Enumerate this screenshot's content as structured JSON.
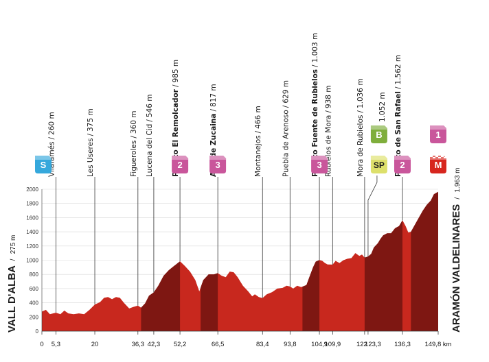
{
  "start": {
    "name": "VALL D'ALBA",
    "alt": "275 m"
  },
  "finish": {
    "name": "ARAMÓN VALDELINARES",
    "alt": "1.963 m"
  },
  "chart_data": {
    "type": "area",
    "title": "",
    "xlabel": "",
    "ylabel": "",
    "x_unit": "km",
    "xlim": [
      0,
      149.8
    ],
    "ylim": [
      0,
      2000
    ],
    "y_ticks": [
      0,
      200,
      400,
      600,
      800,
      1000,
      1200,
      1400,
      1600,
      1800,
      2000
    ],
    "x_ticks": [
      "0",
      "5,3",
      "20",
      "36,3",
      "42,3",
      "52,2",
      "66,5",
      "83,4",
      "93,8",
      "104,9",
      "109,9",
      "122",
      "123,3",
      "136,3",
      "149,8 km"
    ],
    "x_tick_values": [
      0,
      5.3,
      20,
      36.3,
      42.3,
      52.2,
      66.5,
      83.4,
      93.8,
      104.9,
      109.9,
      122,
      123.3,
      136.3,
      149.8
    ],
    "profile": [
      [
        0,
        275
      ],
      [
        1.5,
        300
      ],
      [
        3,
        240
      ],
      [
        5.3,
        260
      ],
      [
        7,
        240
      ],
      [
        8.5,
        290
      ],
      [
        10,
        250
      ],
      [
        12,
        240
      ],
      [
        14,
        250
      ],
      [
        16,
        240
      ],
      [
        18,
        300
      ],
      [
        20,
        375
      ],
      [
        22,
        410
      ],
      [
        23.5,
        470
      ],
      [
        25,
        480
      ],
      [
        26.5,
        450
      ],
      [
        28,
        480
      ],
      [
        29.5,
        470
      ],
      [
        31,
        400
      ],
      [
        33,
        320
      ],
      [
        34.5,
        340
      ],
      [
        36.3,
        360
      ],
      [
        37.5,
        330
      ],
      [
        39,
        390
      ],
      [
        40.5,
        500
      ],
      [
        42.3,
        546
      ],
      [
        44,
        640
      ],
      [
        46,
        780
      ],
      [
        48,
        860
      ],
      [
        50,
        920
      ],
      [
        52.2,
        985
      ],
      [
        54,
        920
      ],
      [
        56,
        840
      ],
      [
        58,
        720
      ],
      [
        59.5,
        560
      ],
      [
        61,
        720
      ],
      [
        63,
        800
      ],
      [
        65,
        800
      ],
      [
        66.5,
        817
      ],
      [
        68,
        780
      ],
      [
        69.5,
        760
      ],
      [
        71,
        840
      ],
      [
        72.5,
        830
      ],
      [
        74,
        760
      ],
      [
        76,
        640
      ],
      [
        78,
        560
      ],
      [
        79.5,
        490
      ],
      [
        80.5,
        520
      ],
      [
        82,
        480
      ],
      [
        83.4,
        466
      ],
      [
        85,
        520
      ],
      [
        87,
        550
      ],
      [
        89,
        600
      ],
      [
        91,
        610
      ],
      [
        92.5,
        640
      ],
      [
        93.8,
        629
      ],
      [
        95,
        600
      ],
      [
        96.5,
        640
      ],
      [
        98,
        620
      ],
      [
        100,
        650
      ],
      [
        101,
        750
      ],
      [
        102.5,
        900
      ],
      [
        103.5,
        980
      ],
      [
        104.9,
        1003
      ],
      [
        106,
        990
      ],
      [
        107,
        960
      ],
      [
        108,
        940
      ],
      [
        109.9,
        938
      ],
      [
        111,
        990
      ],
      [
        112.5,
        960
      ],
      [
        114,
        1000
      ],
      [
        115.5,
        1020
      ],
      [
        117,
        1030
      ],
      [
        118.5,
        1100
      ],
      [
        120,
        1060
      ],
      [
        121,
        1080
      ],
      [
        122,
        1036
      ],
      [
        123.3,
        1052
      ],
      [
        124.5,
        1090
      ],
      [
        125.5,
        1180
      ],
      [
        127,
        1240
      ],
      [
        128,
        1300
      ],
      [
        129,
        1350
      ],
      [
        130.5,
        1380
      ],
      [
        132,
        1380
      ],
      [
        133.5,
        1450
      ],
      [
        135,
        1480
      ],
      [
        136.3,
        1562
      ],
      [
        137.5,
        1480
      ],
      [
        138.5,
        1390
      ],
      [
        139.5,
        1400
      ],
      [
        141,
        1500
      ],
      [
        142.5,
        1600
      ],
      [
        144,
        1700
      ],
      [
        145.5,
        1780
      ],
      [
        147,
        1840
      ],
      [
        148.2,
        1930
      ],
      [
        149.8,
        1963
      ]
    ],
    "climb_segments": [
      {
        "from": 37.5,
        "to": 52.2
      },
      {
        "from": 60,
        "to": 66.5
      },
      {
        "from": 98.5,
        "to": 104.9
      },
      {
        "from": 122,
        "to": 136.3
      },
      {
        "from": 139.5,
        "to": 149.8
      }
    ],
    "colors": {
      "profile_fill": "#c8281e",
      "climb_fill": "#7e1712",
      "badge_magenta": "#c9569b",
      "badge_cyan": "#35a8dc",
      "badge_green": "#7fae3c",
      "badge_yellow": "#dde06b",
      "badge_red": "#d7261e"
    }
  },
  "waypoints": [
    {
      "km": 5.3,
      "name": "Vilafamés",
      "alt": "260 m",
      "bold": false
    },
    {
      "km": 20,
      "name": "Les Useres",
      "alt": "375 m",
      "bold": false
    },
    {
      "km": 36.3,
      "name": "Figueroles",
      "alt": "360 m",
      "bold": false
    },
    {
      "km": 42.3,
      "name": "Lucena del Cid",
      "alt": "546 m",
      "bold": false
    },
    {
      "km": 52.2,
      "name": "Puerto El Remolcador",
      "alt": "985 m",
      "bold": true
    },
    {
      "km": 66.5,
      "name": "Alto de Zucaina",
      "alt": "817 m",
      "bold": true
    },
    {
      "km": 83.4,
      "name": "Montanejos",
      "alt": "466 m",
      "bold": false
    },
    {
      "km": 93.8,
      "name": "Puebla de Arenoso",
      "alt": "629 m",
      "bold": false
    },
    {
      "km": 104.9,
      "name": "Puerto Fuente de Rubielos",
      "alt": "1.003 m",
      "bold": true
    },
    {
      "km": 109.9,
      "name": "Rubielos de Mora",
      "alt": "938 m",
      "bold": false
    },
    {
      "km": 122,
      "name": "Mora de Rubielos",
      "alt": "1.036 m",
      "bold": false
    },
    {
      "km": 123.3,
      "name": "",
      "alt": "1.052 m",
      "bold": false
    },
    {
      "km": 136.3,
      "name": "Puerto de San Rafael",
      "alt": "1.562 m",
      "bold": true
    }
  ],
  "badges": [
    {
      "km": 0,
      "label": "S",
      "color": "badge_cyan",
      "slot": "low",
      "icon": "start-badge"
    },
    {
      "km": 52.2,
      "label": "2",
      "color": "badge_magenta",
      "slot": "low",
      "icon": "category-2-badge"
    },
    {
      "km": 66.5,
      "label": "3",
      "color": "badge_magenta",
      "slot": "low",
      "icon": "category-3-badge"
    },
    {
      "km": 104.9,
      "label": "3",
      "color": "badge_magenta",
      "slot": "low",
      "icon": "category-3-badge"
    },
    {
      "km": 123.3,
      "label": "B",
      "color": "badge_green",
      "slot": "high",
      "icon": "bonus-badge"
    },
    {
      "km": 123.3,
      "label": "SP",
      "color": "badge_yellow",
      "slot": "low",
      "icon": "sprint-badge"
    },
    {
      "km": 136.3,
      "label": "2",
      "color": "badge_magenta",
      "slot": "low",
      "icon": "category-2-badge"
    },
    {
      "km": 149.8,
      "label": "1",
      "color": "badge_magenta",
      "slot": "high",
      "icon": "category-1-badge"
    },
    {
      "km": 149.8,
      "label": "M",
      "color": "badge_red",
      "slot": "low",
      "icon": "summit-finish-badge"
    }
  ]
}
